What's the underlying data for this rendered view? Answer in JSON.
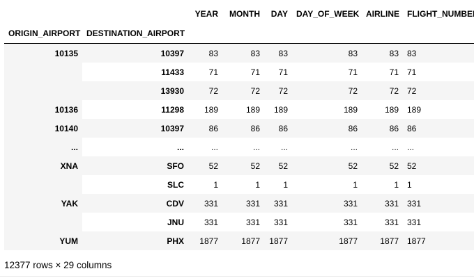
{
  "table": {
    "index_names": [
      "ORIGIN_AIRPORT",
      "DESTINATION_AIRPORT"
    ],
    "columns": [
      "YEAR",
      "MONTH",
      "DAY",
      "DAY_OF_WEEK",
      "AIRLINE",
      "FLIGHT_NUMBER"
    ],
    "rows": [
      {
        "origin": "10135",
        "dest": "10397",
        "values": [
          "83",
          "83",
          "83",
          "83",
          "83",
          "83"
        ]
      },
      {
        "origin": "",
        "dest": "11433",
        "values": [
          "71",
          "71",
          "71",
          "71",
          "71",
          "71"
        ]
      },
      {
        "origin": "",
        "dest": "13930",
        "values": [
          "72",
          "72",
          "72",
          "72",
          "72",
          "72"
        ]
      },
      {
        "origin": "10136",
        "dest": "11298",
        "values": [
          "189",
          "189",
          "189",
          "189",
          "189",
          "189"
        ]
      },
      {
        "origin": "10140",
        "dest": "10397",
        "values": [
          "86",
          "86",
          "86",
          "86",
          "86",
          "86"
        ]
      },
      {
        "origin": "...",
        "dest": "...",
        "values": [
          "...",
          "...",
          "...",
          "...",
          "...",
          "..."
        ]
      },
      {
        "origin": "XNA",
        "dest": "SFO",
        "values": [
          "52",
          "52",
          "52",
          "52",
          "52",
          "52"
        ]
      },
      {
        "origin": "",
        "dest": "SLC",
        "values": [
          "1",
          "1",
          "1",
          "1",
          "1",
          "1"
        ]
      },
      {
        "origin": "YAK",
        "dest": "CDV",
        "values": [
          "331",
          "331",
          "331",
          "331",
          "331",
          "331"
        ]
      },
      {
        "origin": "",
        "dest": "JNU",
        "values": [
          "331",
          "331",
          "331",
          "331",
          "331",
          "331"
        ]
      },
      {
        "origin": "YUM",
        "dest": "PHX",
        "values": [
          "1877",
          "1877",
          "1877",
          "1877",
          "1877",
          "1877"
        ]
      }
    ]
  },
  "footer": {
    "shape_text": "12377 rows × 29 columns"
  }
}
